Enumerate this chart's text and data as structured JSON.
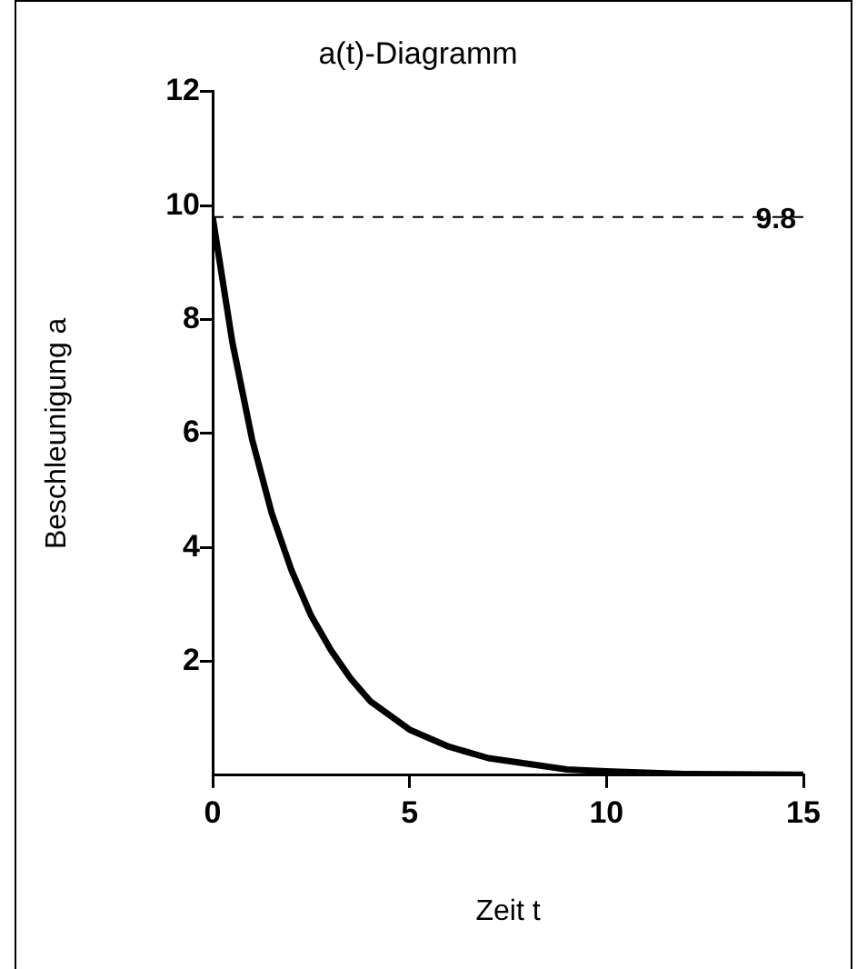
{
  "chart_data": {
    "type": "line",
    "title": "a(t)-Diagramm",
    "xlabel": "Zeit t",
    "ylabel": "Beschleunigung a",
    "x": [
      0,
      0.5,
      1,
      1.5,
      2,
      2.5,
      3,
      3.5,
      4,
      5,
      6,
      7,
      8,
      9,
      10,
      12,
      15
    ],
    "series": [
      {
        "color": "#000000",
        "values": [
          9.8,
          7.6,
          5.9,
          4.6,
          3.6,
          2.8,
          2.2,
          1.7,
          1.3,
          0.8,
          0.5,
          0.3,
          0.2,
          0.1,
          0.07,
          0.02,
          0.01
        ]
      }
    ],
    "xlim": [
      0,
      15
    ],
    "xticks": [
      0,
      5,
      10,
      15
    ],
    "ylim": [
      0,
      12
    ],
    "yticks": [
      2,
      4,
      6,
      8,
      10,
      12
    ],
    "ref_lines": [
      {
        "axis": "y",
        "value": 9.8,
        "label": "9.8",
        "line_style": "dashed",
        "color": "#000000"
      }
    ],
    "grid": false,
    "legend": false,
    "marker": "none",
    "line_style": "solid"
  }
}
